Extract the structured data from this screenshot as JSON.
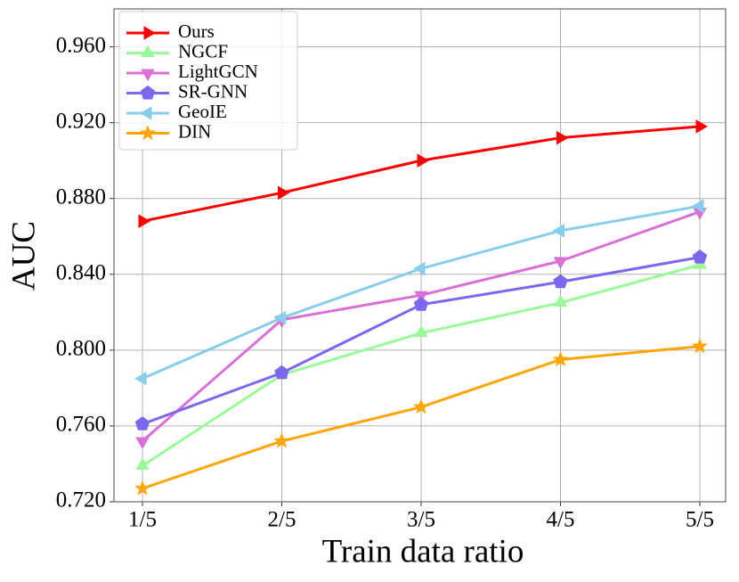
{
  "chart_data": {
    "type": "line",
    "x_label": "Train data ratio",
    "y_label": "AUC",
    "categories": [
      "1/5",
      "2/5",
      "3/5",
      "4/5",
      "5/5"
    ],
    "series": [
      {
        "name": "Ours",
        "color": "#ff0000",
        "marker": "triangle-right",
        "values": [
          0.868,
          0.883,
          0.9,
          0.912,
          0.918
        ]
      },
      {
        "name": "NGCF",
        "color": "#98fb98",
        "marker": "triangle-up",
        "values": [
          0.739,
          0.787,
          0.809,
          0.825,
          0.845
        ]
      },
      {
        "name": "LightGCN",
        "color": "#da70d6",
        "marker": "triangle-down",
        "values": [
          0.752,
          0.816,
          0.829,
          0.847,
          0.873
        ]
      },
      {
        "name": "SR-GNN",
        "color": "#7b68ee",
        "marker": "pentagon",
        "values": [
          0.761,
          0.788,
          0.824,
          0.836,
          0.849
        ]
      },
      {
        "name": "GeoIE",
        "color": "#87ceeb",
        "marker": "triangle-left",
        "values": [
          0.785,
          0.817,
          0.843,
          0.863,
          0.876
        ]
      },
      {
        "name": "DIN",
        "color": "#ffa500",
        "marker": "star",
        "values": [
          0.727,
          0.752,
          0.77,
          0.795,
          0.802
        ]
      }
    ],
    "ylim": [
      0.72,
      0.98
    ],
    "yticks": [
      {
        "value": 0.72,
        "label": "0.720"
      },
      {
        "value": 0.76,
        "label": "0.760"
      },
      {
        "value": 0.8,
        "label": "0.800"
      },
      {
        "value": 0.84,
        "label": "0.840"
      },
      {
        "value": 0.88,
        "label": "0.880"
      },
      {
        "value": 0.92,
        "label": "0.920"
      },
      {
        "value": 0.96,
        "label": "0.960"
      }
    ],
    "grid": true,
    "legend": "upper-left"
  }
}
